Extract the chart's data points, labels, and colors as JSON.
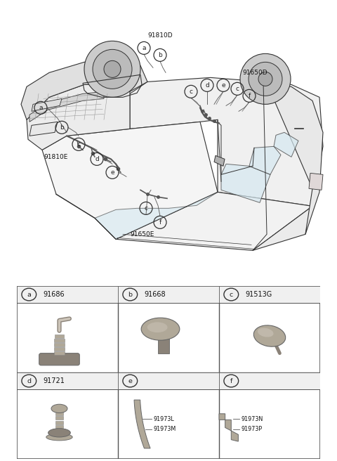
{
  "bg_color": "#ffffff",
  "lc": "#333333",
  "cells": [
    {
      "label": "a",
      "part_no": "91686",
      "row": 0,
      "col": 0
    },
    {
      "label": "b",
      "part_no": "91668",
      "row": 0,
      "col": 1
    },
    {
      "label": "c",
      "part_no": "91513G",
      "row": 0,
      "col": 2
    },
    {
      "label": "d",
      "part_no": "91721",
      "row": 1,
      "col": 0
    },
    {
      "label": "e",
      "part_no": "",
      "row": 1,
      "col": 1
    },
    {
      "label": "f",
      "part_no": "",
      "row": 1,
      "col": 2
    }
  ],
  "sub_labels_e": [
    "91973L",
    "91973M"
  ],
  "sub_labels_f": [
    "91973N",
    "91973P"
  ],
  "tbl_color": "#555555"
}
